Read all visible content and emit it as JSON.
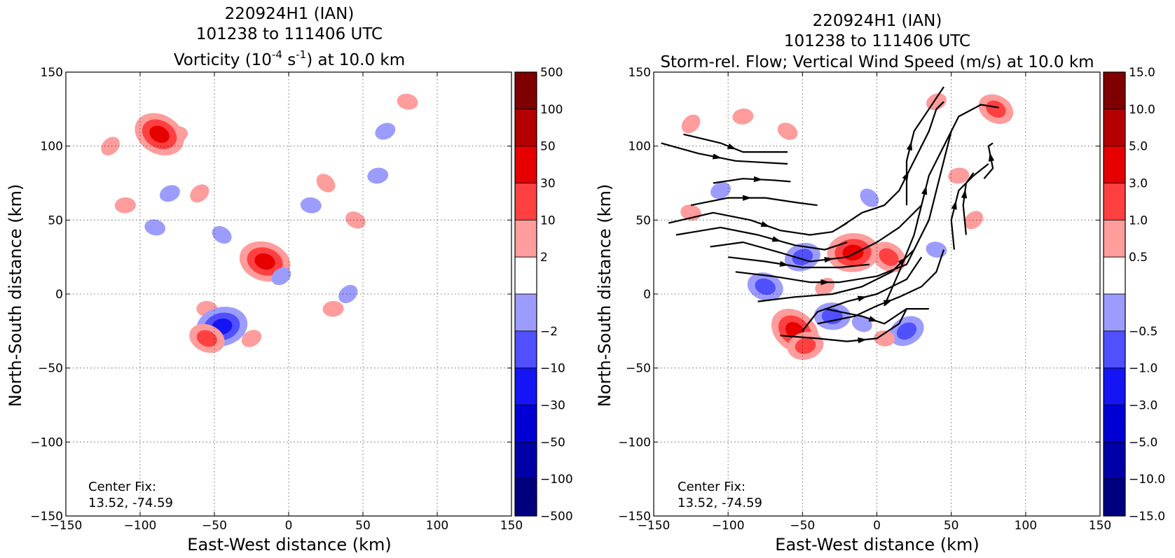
{
  "panels": [
    {
      "title_lines": [
        "220924H1 (IAN)",
        "101238 to 111406 UTC"
      ],
      "title_main": "Vorticity (10",
      "title_sup1": "-4",
      "title_mid": " s",
      "title_sup2": "-1",
      "title_end": ") at 10.0 km",
      "xlabel": "East-West distance (km)",
      "ylabel": "North-South distance (km)",
      "center_fix_label": "Center Fix:",
      "center_fix_value": "13.52, -74.59",
      "colorbar_labels": [
        "500",
        "100",
        "50",
        "30",
        "10",
        "2",
        "−2",
        "−10",
        "−30",
        "−50",
        "−100",
        "−500"
      ]
    },
    {
      "title_lines": [
        "220924H1 (IAN)",
        "101238 to 111406 UTC",
        "Storm-rel. Flow; Vertical Wind Speed (m/s) at 10.0 km"
      ],
      "xlabel": "East-West distance (km)",
      "ylabel": "North-South distance (km)",
      "center_fix_label": "Center Fix:",
      "center_fix_value": "13.52, -74.59",
      "colorbar_labels": [
        "15.0",
        "10.0",
        "5.0",
        "3.0",
        "1.0",
        "0.5",
        "−0.5",
        "−1.0",
        "−3.0",
        "−5.0",
        "−10.0",
        "−15.0"
      ]
    }
  ],
  "chart_data": [
    {
      "type": "heatmap",
      "subtitle": "Vorticity at 10.0 km",
      "x_tick_labels": [
        "−150",
        "−100",
        "−50",
        "0",
        "50",
        "100",
        "150"
      ],
      "y_tick_labels": [
        "150",
        "100",
        "50",
        "0",
        "−50",
        "−100",
        "−150"
      ],
      "xlim": [
        -150,
        150
      ],
      "ylim": [
        -150,
        150
      ],
      "grid": true,
      "colorbar_levels": [
        -500,
        -100,
        -50,
        -30,
        -10,
        -2,
        2,
        10,
        30,
        50,
        100,
        500
      ],
      "colorbar_colors": [
        "#00007f",
        "#0000a8",
        "#0000d4",
        "#1414f5",
        "#5050ff",
        "#9c9cff",
        "#ffffff",
        "#ff9c9c",
        "#ff4040",
        "#e60000",
        "#b40000",
        "#7f0000"
      ],
      "features": [
        {
          "sign": "pos",
          "level": 1,
          "x": -120,
          "y": 100
        },
        {
          "sign": "pos",
          "level": 1,
          "x": -75,
          "y": 108
        },
        {
          "sign": "pos",
          "level": 3,
          "x": -87,
          "y": 108
        },
        {
          "sign": "neg",
          "level": 1,
          "x": -80,
          "y": 68
        },
        {
          "sign": "neg",
          "level": 1,
          "x": -90,
          "y": 45
        },
        {
          "sign": "pos",
          "level": 1,
          "x": -60,
          "y": 68
        },
        {
          "sign": "pos",
          "level": 1,
          "x": -110,
          "y": 60
        },
        {
          "sign": "neg",
          "level": 1,
          "x": -45,
          "y": 40
        },
        {
          "sign": "pos",
          "level": 1,
          "x": -20,
          "y": 22
        },
        {
          "sign": "pos",
          "level": 3,
          "x": -16,
          "y": 22
        },
        {
          "sign": "neg",
          "level": 1,
          "x": -5,
          "y": 12
        },
        {
          "sign": "pos",
          "level": 1,
          "x": -55,
          "y": -10
        },
        {
          "sign": "neg",
          "level": 2,
          "x": -40,
          "y": -20
        },
        {
          "sign": "neg",
          "level": 3,
          "x": -45,
          "y": -22
        },
        {
          "sign": "pos",
          "level": 2,
          "x": -55,
          "y": -30
        },
        {
          "sign": "pos",
          "level": 1,
          "x": -25,
          "y": -30
        },
        {
          "sign": "neg",
          "level": 1,
          "x": 15,
          "y": 60
        },
        {
          "sign": "pos",
          "level": 1,
          "x": 25,
          "y": 75
        },
        {
          "sign": "neg",
          "level": 1,
          "x": 60,
          "y": 80
        },
        {
          "sign": "pos",
          "level": 1,
          "x": 45,
          "y": 50
        },
        {
          "sign": "neg",
          "level": 1,
          "x": 65,
          "y": 110
        },
        {
          "sign": "pos",
          "level": 1,
          "x": 80,
          "y": 130
        },
        {
          "sign": "neg",
          "level": 1,
          "x": 40,
          "y": 0
        },
        {
          "sign": "pos",
          "level": 1,
          "x": 30,
          "y": -10
        }
      ]
    },
    {
      "type": "heatmap",
      "subtitle": "Storm-rel. Flow; Vertical Wind Speed (m/s) at 10.0 km",
      "x_tick_labels": [
        "−150",
        "−100",
        "−50",
        "0",
        "50",
        "100",
        "150"
      ],
      "y_tick_labels": [
        "150",
        "100",
        "50",
        "0",
        "−50",
        "−100",
        "−150"
      ],
      "xlim": [
        -150,
        150
      ],
      "ylim": [
        -150,
        150
      ],
      "grid": true,
      "colorbar_levels": [
        -15.0,
        -10.0,
        -5.0,
        -3.0,
        -1.0,
        -0.5,
        0.5,
        1.0,
        3.0,
        5.0,
        10.0,
        15.0
      ],
      "colorbar_colors": [
        "#00007f",
        "#0000a8",
        "#0000d4",
        "#1414f5",
        "#5050ff",
        "#9c9cff",
        "#ffffff",
        "#ff9c9c",
        "#ff4040",
        "#e60000",
        "#b40000",
        "#7f0000"
      ],
      "features": [
        {
          "sign": "pos",
          "level": 1,
          "x": -125,
          "y": 115
        },
        {
          "sign": "pos",
          "level": 1,
          "x": -90,
          "y": 120
        },
        {
          "sign": "pos",
          "level": 1,
          "x": -60,
          "y": 110
        },
        {
          "sign": "neg",
          "level": 1,
          "x": -105,
          "y": 70
        },
        {
          "sign": "pos",
          "level": 1,
          "x": -125,
          "y": 55
        },
        {
          "sign": "pos",
          "level": 2,
          "x": -20,
          "y": 30
        },
        {
          "sign": "pos",
          "level": 3,
          "x": -16,
          "y": 28
        },
        {
          "sign": "pos",
          "level": 2,
          "x": 8,
          "y": 25
        },
        {
          "sign": "neg",
          "level": 2,
          "x": -50,
          "y": 25
        },
        {
          "sign": "neg",
          "level": 2,
          "x": -75,
          "y": 5
        },
        {
          "sign": "pos",
          "level": 1,
          "x": -35,
          "y": 5
        },
        {
          "sign": "neg",
          "level": 2,
          "x": -30,
          "y": -15
        },
        {
          "sign": "pos",
          "level": 3,
          "x": -55,
          "y": -25
        },
        {
          "sign": "pos",
          "level": 2,
          "x": -48,
          "y": -35
        },
        {
          "sign": "neg",
          "level": 1,
          "x": -10,
          "y": -20
        },
        {
          "sign": "neg",
          "level": 2,
          "x": 20,
          "y": -25
        },
        {
          "sign": "pos",
          "level": 1,
          "x": 5,
          "y": -30
        },
        {
          "sign": "neg",
          "level": 1,
          "x": -5,
          "y": 65
        },
        {
          "sign": "pos",
          "level": 1,
          "x": 55,
          "y": 80
        },
        {
          "sign": "pos",
          "level": 2,
          "x": 80,
          "y": 125
        },
        {
          "sign": "pos",
          "level": 1,
          "x": 40,
          "y": 130
        },
        {
          "sign": "neg",
          "level": 1,
          "x": 40,
          "y": 30
        },
        {
          "sign": "pos",
          "level": 1,
          "x": 65,
          "y": 50
        }
      ],
      "streamlines": [
        [
          [
            -145,
            102
          ],
          [
            -120,
            95
          ],
          [
            -95,
            90
          ],
          [
            -60,
            88
          ]
        ],
        [
          [
            -130,
            108
          ],
          [
            -105,
            102
          ],
          [
            -90,
            96
          ],
          [
            -70,
            96
          ],
          [
            -60,
            96
          ]
        ],
        [
          [
            -110,
            75
          ],
          [
            -90,
            78
          ],
          [
            -70,
            77
          ],
          [
            -58,
            76
          ]
        ],
        [
          [
            -125,
            60
          ],
          [
            -100,
            65
          ],
          [
            -75,
            65
          ],
          [
            -55,
            62
          ],
          [
            -40,
            60
          ]
        ],
        [
          [
            -140,
            48
          ],
          [
            -110,
            55
          ],
          [
            -85,
            50
          ],
          [
            -65,
            43
          ],
          [
            -45,
            40
          ],
          [
            -30,
            42
          ],
          [
            -20,
            48
          ]
        ],
        [
          [
            -135,
            40
          ],
          [
            -105,
            45
          ],
          [
            -80,
            40
          ],
          [
            -55,
            33
          ],
          [
            -35,
            30
          ],
          [
            -20,
            35
          ]
        ],
        [
          [
            -112,
            32
          ],
          [
            -90,
            35
          ],
          [
            -65,
            28
          ],
          [
            -45,
            22
          ],
          [
            -20,
            25
          ],
          [
            0,
            35
          ],
          [
            15,
            45
          ],
          [
            30,
            60
          ]
        ],
        [
          [
            -100,
            25
          ],
          [
            -75,
            22
          ],
          [
            -50,
            18
          ],
          [
            -25,
            18
          ],
          [
            -5,
            20
          ]
        ],
        [
          [
            -95,
            15
          ],
          [
            -70,
            12
          ],
          [
            -45,
            8
          ],
          [
            -25,
            8
          ],
          [
            0,
            12
          ],
          [
            20,
            20
          ],
          [
            25,
            30
          ]
        ],
        [
          [
            -80,
            -5
          ],
          [
            -55,
            -2
          ],
          [
            -30,
            0
          ],
          [
            -10,
            5
          ],
          [
            10,
            15
          ],
          [
            25,
            30
          ],
          [
            35,
            50
          ],
          [
            40,
            70
          ],
          [
            45,
            90
          ],
          [
            50,
            110
          ]
        ],
        [
          [
            -50,
            -25
          ],
          [
            -40,
            -12
          ],
          [
            -20,
            -5
          ],
          [
            0,
            0
          ],
          [
            20,
            10
          ],
          [
            30,
            25
          ]
        ],
        [
          [
            -40,
            -20
          ],
          [
            -15,
            -15
          ],
          [
            0,
            -8
          ],
          [
            15,
            -2
          ],
          [
            30,
            5
          ],
          [
            40,
            15
          ],
          [
            45,
            30
          ]
        ],
        [
          [
            -35,
            -10
          ],
          [
            -10,
            -15
          ],
          [
            5,
            -20
          ],
          [
            20,
            -10
          ],
          [
            35,
            -10
          ]
        ],
        [
          [
            -65,
            -28
          ],
          [
            -40,
            -30
          ],
          [
            -20,
            -32
          ],
          [
            0,
            -30
          ],
          [
            15,
            -20
          ],
          [
            20,
            -10
          ]
        ],
        [
          [
            5,
            -8
          ],
          [
            15,
            15
          ],
          [
            25,
            40
          ],
          [
            30,
            60
          ],
          [
            35,
            80
          ],
          [
            45,
            100
          ],
          [
            55,
            120
          ],
          [
            70,
            128
          ],
          [
            82,
            126
          ]
        ],
        [
          [
            20,
            60
          ],
          [
            20,
            90
          ],
          [
            25,
            110
          ],
          [
            35,
            125
          ],
          [
            45,
            140
          ]
        ],
        [
          [
            -25,
            45
          ],
          [
            -10,
            55
          ],
          [
            5,
            60
          ],
          [
            15,
            70
          ],
          [
            25,
            90
          ],
          [
            35,
            110
          ],
          [
            40,
            125
          ],
          [
            45,
            130
          ]
        ],
        [
          [
            52,
            30
          ],
          [
            50,
            50
          ],
          [
            55,
            70
          ],
          [
            65,
            80
          ],
          [
            75,
            88
          ]
        ],
        [
          [
            60,
            40
          ],
          [
            58,
            60
          ],
          [
            60,
            75
          ],
          [
            65,
            82
          ]
        ],
        [
          [
            72,
            78
          ],
          [
            78,
            85
          ],
          [
            75,
            100
          ],
          [
            78,
            102
          ]
        ]
      ]
    }
  ]
}
